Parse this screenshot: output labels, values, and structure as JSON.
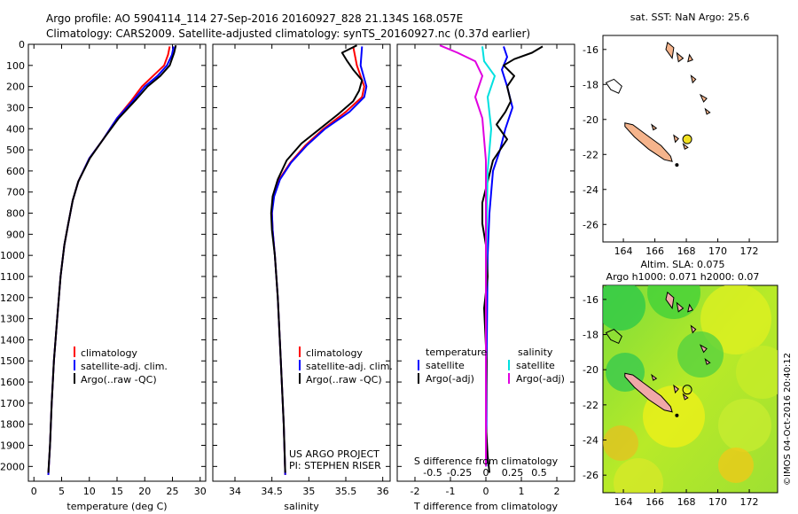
{
  "header": {
    "line1": "Argo profile: AO 5904114_114 27-Sep-2016 20160927_828 21.134S 168.057E",
    "line2": "Climatology: CARS2009. Satellite-adjusted climatology: synTS_20160927.nc (0.37d earlier)"
  },
  "chart_data": [
    {
      "type": "line",
      "id": "temperature",
      "xlabel": "temperature (deg C)",
      "ylim": [
        0,
        2070
      ],
      "xlim": [
        -1,
        31
      ],
      "xticks": [
        0,
        5,
        10,
        15,
        20,
        25,
        30
      ],
      "xticklabels": [
        "0",
        "5",
        "10",
        "15",
        "20",
        "25",
        "30"
      ],
      "yticks": [
        0,
        100,
        200,
        300,
        400,
        500,
        600,
        700,
        800,
        900,
        1000,
        1100,
        1200,
        1300,
        1400,
        1500,
        1600,
        1700,
        1800,
        1900,
        2000
      ],
      "yticklabels": [
        "0",
        "100",
        "200",
        "300",
        "400",
        "500",
        "600",
        "700",
        "800",
        "900",
        "1000",
        "1100",
        "1200",
        "1300",
        "1400",
        "1500",
        "1600",
        "1700",
        "1800",
        "1900",
        "2000"
      ],
      "legend": [
        "climatology",
        "satellite-adj. clim.",
        "Argo(..raw -QC)"
      ],
      "series": [
        {
          "name": "climatology",
          "color": "#ff0000",
          "points": [
            [
              24.5,
              10
            ],
            [
              24.2,
              50
            ],
            [
              23.5,
              100
            ],
            [
              21.5,
              150
            ],
            [
              19.5,
              200
            ],
            [
              17.5,
              270
            ],
            [
              15,
              350
            ],
            [
              12.5,
              450
            ],
            [
              10,
              540
            ],
            [
              8,
              650
            ],
            [
              7,
              740
            ],
            [
              6.2,
              850
            ],
            [
              5.5,
              950
            ],
            [
              4.8,
              1100
            ],
            [
              4.2,
              1300
            ],
            [
              3.6,
              1500
            ],
            [
              3.2,
              1700
            ],
            [
              2.9,
              1900
            ],
            [
              2.6,
              2040
            ]
          ]
        },
        {
          "name": "satellite-adj. clim.",
          "color": "#0000ff",
          "points": [
            [
              25.2,
              10
            ],
            [
              24.9,
              50
            ],
            [
              24,
              100
            ],
            [
              22.3,
              150
            ],
            [
              20,
              200
            ],
            [
              17.8,
              270
            ],
            [
              15,
              350
            ],
            [
              12.5,
              450
            ],
            [
              10,
              540
            ],
            [
              8,
              650
            ],
            [
              7,
              740
            ],
            [
              6.2,
              850
            ],
            [
              5.5,
              950
            ],
            [
              4.8,
              1100
            ],
            [
              4.2,
              1300
            ],
            [
              3.6,
              1500
            ],
            [
              3.2,
              1700
            ],
            [
              2.9,
              1900
            ],
            [
              2.6,
              2040
            ]
          ]
        },
        {
          "name": "Argo(..raw -QC)",
          "color": "#000000",
          "points": [
            [
              25.6,
              5
            ],
            [
              25.3,
              40
            ],
            [
              24.5,
              100
            ],
            [
              22.8,
              150
            ],
            [
              20.5,
              200
            ],
            [
              18.5,
              260
            ],
            [
              15.3,
              350
            ],
            [
              12.5,
              450
            ],
            [
              10.1,
              540
            ],
            [
              8,
              650
            ],
            [
              7,
              740
            ],
            [
              6.2,
              850
            ],
            [
              5.5,
              950
            ],
            [
              4.8,
              1100
            ],
            [
              4.2,
              1300
            ],
            [
              3.6,
              1500
            ],
            [
              3.2,
              1700
            ],
            [
              2.9,
              1900
            ],
            [
              2.6,
              2030
            ]
          ]
        }
      ]
    },
    {
      "type": "line",
      "id": "salinity",
      "xlabel": "salinity",
      "ylim": [
        0,
        2070
      ],
      "xlim": [
        33.7,
        36.1
      ],
      "xticks": [
        34,
        34.5,
        35,
        35.5,
        36
      ],
      "xticklabels": [
        "34",
        "34.5",
        "35",
        "35.5",
        "36"
      ],
      "legend": [
        "climatology",
        "satellite-adj. clim.",
        "Argo(..raw -QC)"
      ],
      "credit": [
        "US ARGO PROJECT",
        "PI: STEPHEN RISER"
      ],
      "series": [
        {
          "name": "climatology",
          "color": "#ff0000",
          "points": [
            [
              35.6,
              10
            ],
            [
              35.65,
              100
            ],
            [
              35.75,
              200
            ],
            [
              35.72,
              250
            ],
            [
              35.5,
              320
            ],
            [
              35.2,
              400
            ],
            [
              34.95,
              480
            ],
            [
              34.75,
              560
            ],
            [
              34.6,
              640
            ],
            [
              34.52,
              720
            ],
            [
              34.5,
              800
            ],
            [
              34.51,
              880
            ],
            [
              34.54,
              1000
            ],
            [
              34.58,
              1200
            ],
            [
              34.62,
              1500
            ],
            [
              34.66,
              1800
            ],
            [
              34.68,
              2040
            ]
          ]
        },
        {
          "name": "satellite-adj. clim.",
          "color": "#0000ff",
          "points": [
            [
              35.72,
              10
            ],
            [
              35.7,
              100
            ],
            [
              35.78,
              200
            ],
            [
              35.75,
              250
            ],
            [
              35.55,
              320
            ],
            [
              35.22,
              400
            ],
            [
              34.97,
              480
            ],
            [
              34.76,
              560
            ],
            [
              34.61,
              640
            ],
            [
              34.53,
              720
            ],
            [
              34.5,
              800
            ],
            [
              34.51,
              880
            ],
            [
              34.54,
              1000
            ],
            [
              34.58,
              1200
            ],
            [
              34.62,
              1500
            ],
            [
              34.66,
              1800
            ],
            [
              34.68,
              2040
            ]
          ]
        },
        {
          "name": "Argo(..raw -QC)",
          "color": "#000000",
          "points": [
            [
              35.65,
              5
            ],
            [
              35.45,
              40
            ],
            [
              35.52,
              80
            ],
            [
              35.6,
              120
            ],
            [
              35.72,
              170
            ],
            [
              35.68,
              220
            ],
            [
              35.6,
              270
            ],
            [
              35.4,
              330
            ],
            [
              35.15,
              400
            ],
            [
              34.9,
              470
            ],
            [
              34.7,
              550
            ],
            [
              34.58,
              640
            ],
            [
              34.51,
              720
            ],
            [
              34.49,
              800
            ],
            [
              34.5,
              880
            ],
            [
              34.54,
              1000
            ],
            [
              34.58,
              1200
            ],
            [
              34.62,
              1500
            ],
            [
              34.66,
              1800
            ],
            [
              34.68,
              2030
            ]
          ]
        }
      ]
    },
    {
      "type": "line",
      "id": "difference",
      "xlabel": "T difference from climatology",
      "xlabel_top": "S difference from climatology",
      "ylim": [
        0,
        2070
      ],
      "xlim": [
        -2.5,
        2.5
      ],
      "xticks": [
        -2,
        -1,
        0,
        1,
        2
      ],
      "xticklabels": [
        "-2",
        "-1",
        "0",
        "1",
        "2"
      ],
      "sticks": [
        -1.5,
        -0.75,
        0,
        0.75,
        1.5
      ],
      "sticklabels": [
        "-0.5",
        "-0.25",
        "0",
        "0.25",
        "0.5"
      ],
      "legend_headers": [
        "temperature",
        "salinity"
      ],
      "legend": [
        "satellite",
        "Argo(-adj)",
        "satellite",
        "Argo(-adj)"
      ],
      "series": [
        {
          "name": "satellite",
          "group": "temperature",
          "color": "#0000ff",
          "points": [
            [
              0.5,
              10
            ],
            [
              0.6,
              60
            ],
            [
              0.45,
              120
            ],
            [
              0.6,
              200
            ],
            [
              0.75,
              300
            ],
            [
              0.55,
              400
            ],
            [
              0.4,
              500
            ],
            [
              0.2,
              600
            ],
            [
              0.1,
              800
            ],
            [
              0.05,
              1000
            ],
            [
              0.02,
              1500
            ],
            [
              0.01,
              2000
            ]
          ]
        },
        {
          "name": "Argo(-adj)",
          "group": "temperature",
          "color": "#000000",
          "points": [
            [
              1.6,
              10
            ],
            [
              1.3,
              40
            ],
            [
              0.8,
              70
            ],
            [
              0.5,
              100
            ],
            [
              0.8,
              150
            ],
            [
              0.6,
              200
            ],
            [
              0.7,
              270
            ],
            [
              0.55,
              320
            ],
            [
              0.3,
              380
            ],
            [
              0.6,
              450
            ],
            [
              0.2,
              550
            ],
            [
              0.05,
              650
            ],
            [
              -0.1,
              750
            ],
            [
              -0.1,
              850
            ],
            [
              0.0,
              950
            ],
            [
              0.05,
              1100
            ],
            [
              -0.05,
              1250
            ],
            [
              0.02,
              1500
            ],
            [
              0.0,
              1800
            ],
            [
              0.05,
              1950
            ],
            [
              0.1,
              2030
            ]
          ]
        },
        {
          "name": "satellite",
          "group": "salinity",
          "color": "#00e0e0",
          "points": [
            [
              -0.1,
              10
            ],
            [
              -0.05,
              80
            ],
            [
              0.25,
              150
            ],
            [
              0.05,
              250
            ],
            [
              0.15,
              400
            ],
            [
              0.05,
              600
            ],
            [
              0.02,
              900
            ],
            [
              0.0,
              1200
            ],
            [
              0.0,
              1600
            ],
            [
              0.0,
              2000
            ]
          ]
        },
        {
          "name": "Argo(-adj)",
          "group": "salinity",
          "color": "#e000e0",
          "points": [
            [
              -1.3,
              5
            ],
            [
              -0.8,
              40
            ],
            [
              -0.3,
              80
            ],
            [
              -0.1,
              150
            ],
            [
              -0.3,
              250
            ],
            [
              -0.1,
              350
            ],
            [
              -0.05,
              450
            ],
            [
              0.0,
              550
            ],
            [
              0.0,
              700
            ],
            [
              0.0,
              900
            ],
            [
              0.0,
              1200
            ],
            [
              0.0,
              1600
            ],
            [
              0.0,
              2000
            ]
          ]
        }
      ]
    }
  ],
  "map_sst": {
    "title": "sat. SST: NaN Argo: 25.6",
    "xticklabels": [
      "164",
      "166",
      "168",
      "170",
      "172"
    ],
    "yticklabels": [
      "-16",
      "-18",
      "-20",
      "-22",
      "-24",
      "-26"
    ],
    "float_lon": 168.057,
    "float_lat": -21.134,
    "land_color": "#f5b48c",
    "marker_color": "#f0e020"
  },
  "map_sla": {
    "title1": "Altim. SLA: 0.075",
    "title2": "Argo h1000: 0.071 h2000: 0.07",
    "xticklabels": [
      "164",
      "166",
      "168",
      "170",
      "172"
    ],
    "yticklabels": [
      "-16",
      "-18",
      "-20",
      "-22",
      "-24",
      "-26"
    ],
    "float_lon": 168.057,
    "float_lat": -21.134,
    "credit": "©IMOS 04-Oct-2016 20:40:12"
  }
}
